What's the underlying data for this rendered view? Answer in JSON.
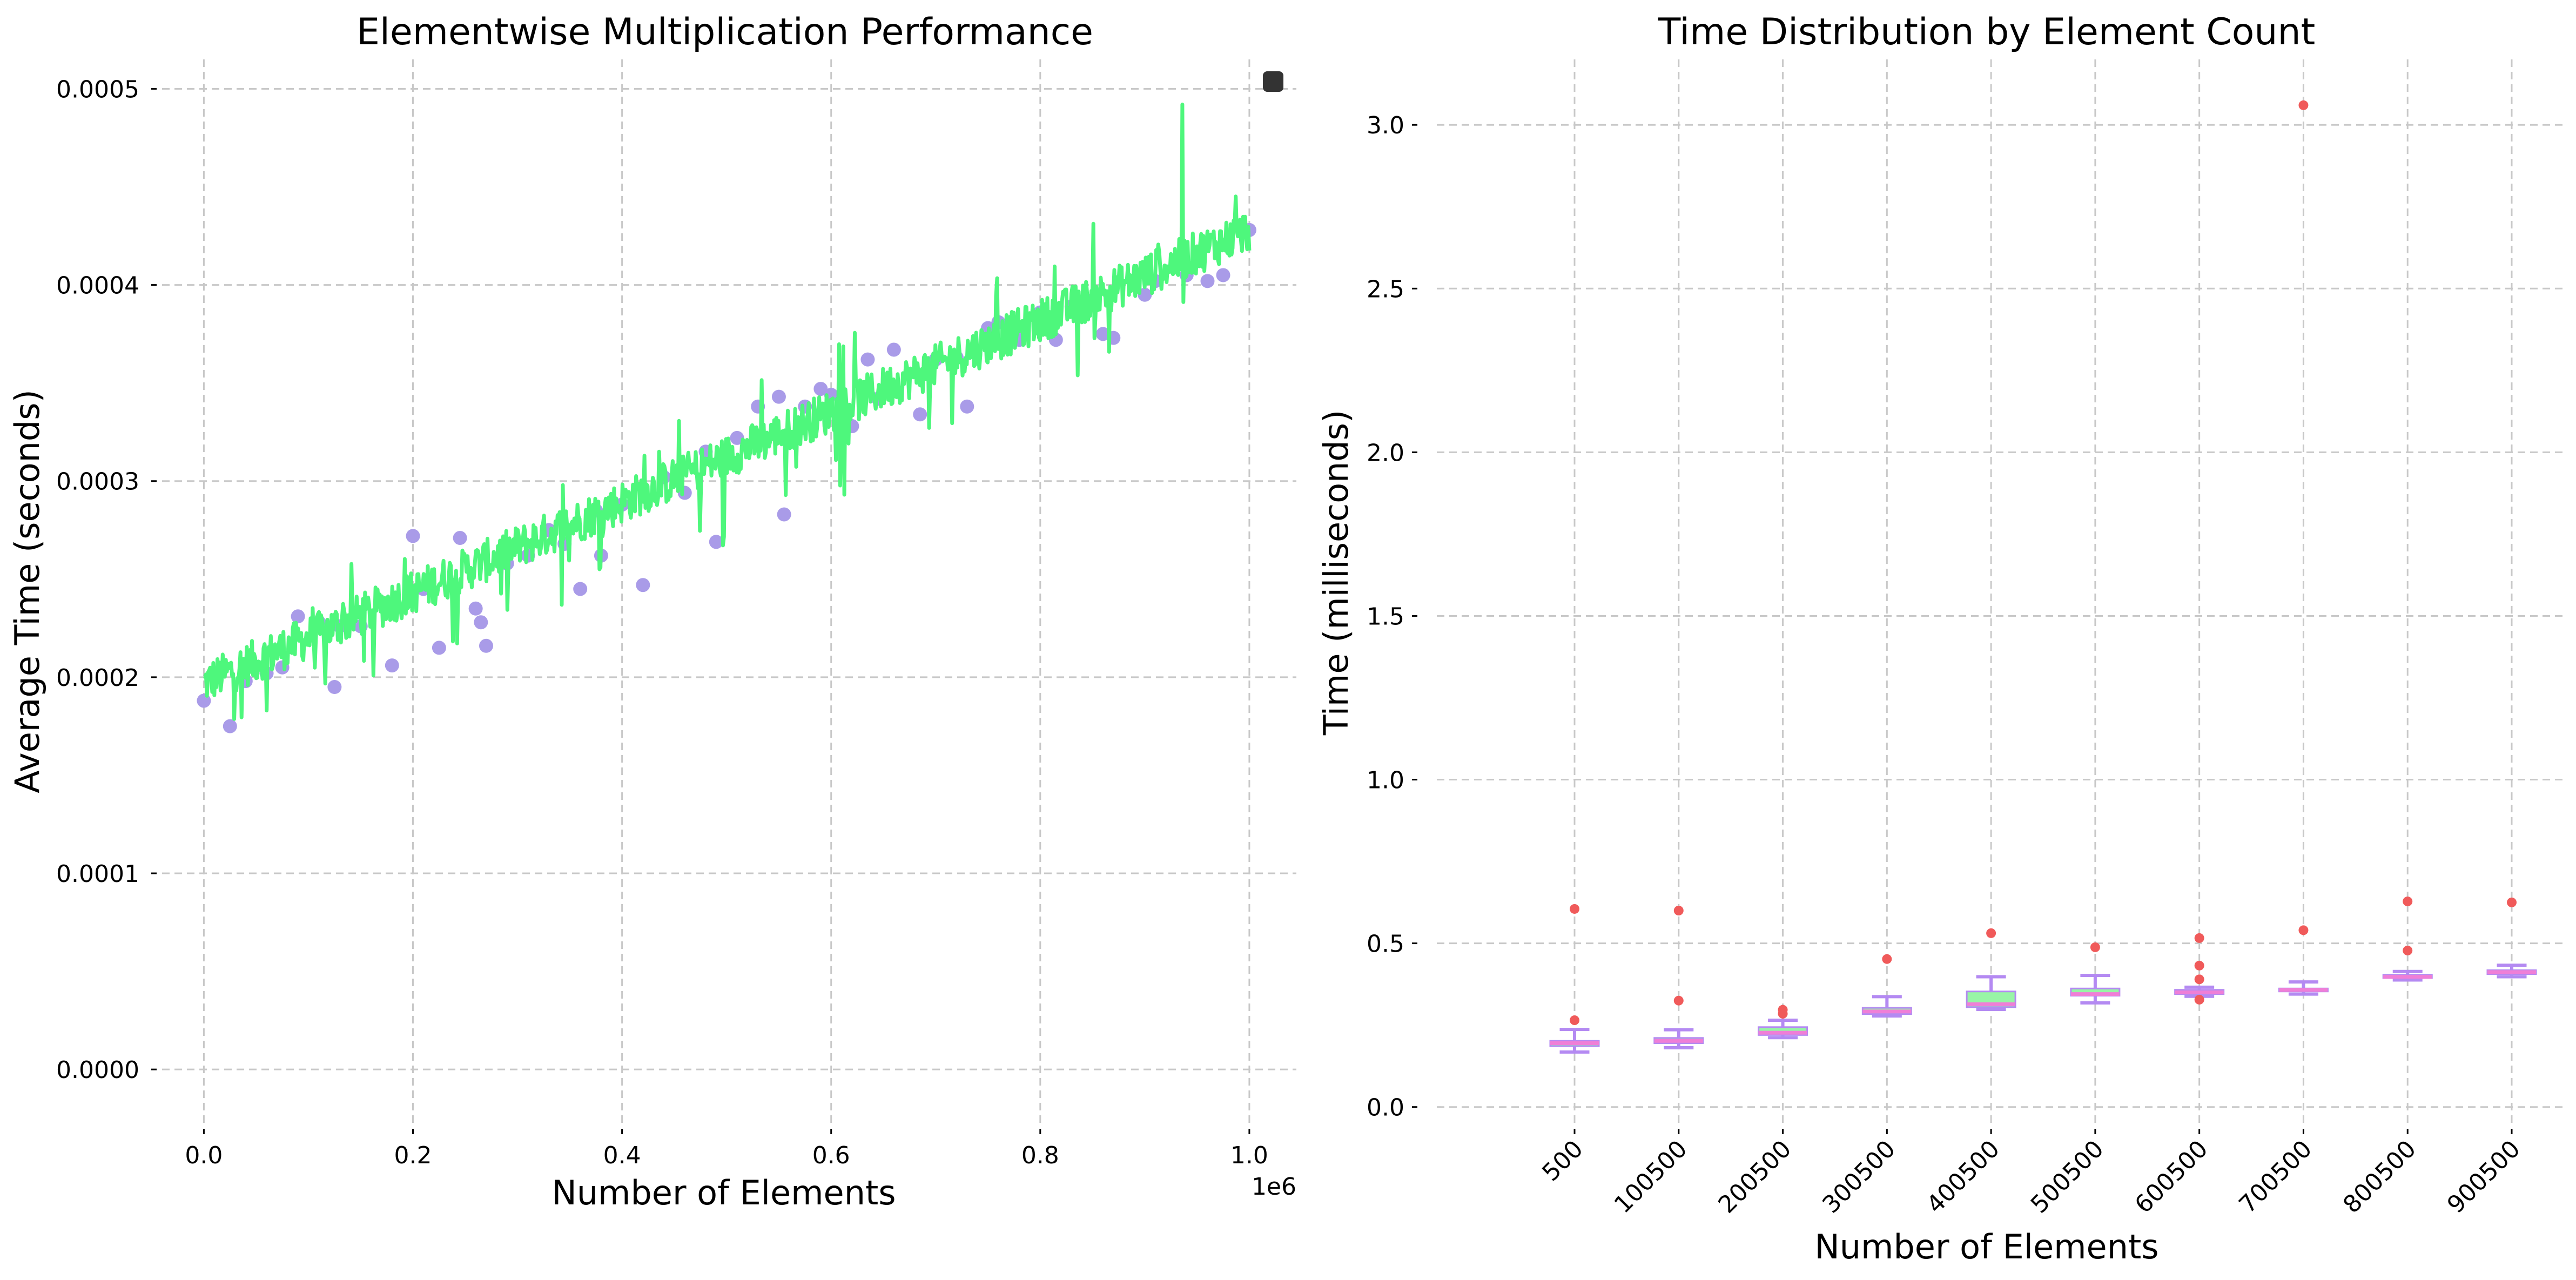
{
  "chart_data": [
    {
      "type": "scatter",
      "title": "Elementwise Multiplication Performance",
      "xlabel": "Number of Elements",
      "ylabel": "Average Time (seconds)",
      "x_offset_label": "1e6",
      "xlim": [
        -0.04,
        1.045
      ],
      "ylim": [
        -2.75e-05,
        0.000515
      ],
      "x_ticks": [
        0.0,
        0.2,
        0.4,
        0.6,
        0.8,
        1.0
      ],
      "x_tick_labels": [
        "0.0",
        "0.2",
        "0.4",
        "0.6",
        "0.8",
        "1.0"
      ],
      "y_ticks": [
        0.0,
        0.0001,
        0.0002,
        0.0003,
        0.0004,
        0.0005
      ],
      "y_tick_labels": [
        "0.0000",
        "0.0001",
        "0.0002",
        "0.0003",
        "0.0004",
        "0.0005"
      ],
      "grid": true,
      "legend": "top-right",
      "colors": {
        "points": "#a99be8",
        "line": "#4ef77c"
      },
      "trend": {
        "x_start": 0.0,
        "y_start": 0.000197,
        "x_end": 1.0,
        "y_end": 0.000428
      },
      "line_x_range": [
        0.0,
        1.0
      ],
      "line_count": 1000,
      "points": [
        [
          0.0,
          0.000188
        ],
        [
          0.025,
          0.000175
        ],
        [
          0.04,
          0.000198
        ],
        [
          0.06,
          0.000202
        ],
        [
          0.075,
          0.000205
        ],
        [
          0.09,
          0.000231
        ],
        [
          0.11,
          0.000228
        ],
        [
          0.125,
          0.000195
        ],
        [
          0.13,
          0.000226
        ],
        [
          0.15,
          0.000226
        ],
        [
          0.17,
          0.000238
        ],
        [
          0.18,
          0.000206
        ],
        [
          0.2,
          0.000272
        ],
        [
          0.21,
          0.000245
        ],
        [
          0.225,
          0.000215
        ],
        [
          0.245,
          0.000271
        ],
        [
          0.26,
          0.000235
        ],
        [
          0.265,
          0.000228
        ],
        [
          0.27,
          0.000216
        ],
        [
          0.29,
          0.000258
        ],
        [
          0.31,
          0.000262
        ],
        [
          0.33,
          0.000275
        ],
        [
          0.345,
          0.000268
        ],
        [
          0.36,
          0.000245
        ],
        [
          0.375,
          0.000285
        ],
        [
          0.38,
          0.000262
        ],
        [
          0.4,
          0.000288
        ],
        [
          0.42,
          0.000247
        ],
        [
          0.44,
          0.000302
        ],
        [
          0.46,
          0.000294
        ],
        [
          0.48,
          0.000315
        ],
        [
          0.49,
          0.000269
        ],
        [
          0.51,
          0.000322
        ],
        [
          0.53,
          0.000338
        ],
        [
          0.55,
          0.000343
        ],
        [
          0.555,
          0.000283
        ],
        [
          0.575,
          0.000338
        ],
        [
          0.59,
          0.000347
        ],
        [
          0.6,
          0.000344
        ],
        [
          0.62,
          0.000328
        ],
        [
          0.635,
          0.000362
        ],
        [
          0.645,
          0.000342
        ],
        [
          0.66,
          0.000367
        ],
        [
          0.685,
          0.000334
        ],
        [
          0.7,
          0.000362
        ],
        [
          0.72,
          0.000363
        ],
        [
          0.73,
          0.000338
        ],
        [
          0.75,
          0.000378
        ],
        [
          0.76,
          0.000381
        ],
        [
          0.78,
          0.000372
        ],
        [
          0.8,
          0.000386
        ],
        [
          0.815,
          0.000372
        ],
        [
          0.83,
          0.000389
        ],
        [
          0.845,
          0.000392
        ],
        [
          0.86,
          0.000375
        ],
        [
          0.87,
          0.000373
        ],
        [
          0.9,
          0.000395
        ],
        [
          0.91,
          0.000402
        ],
        [
          0.94,
          0.000405
        ],
        [
          0.96,
          0.000402
        ],
        [
          0.975,
          0.000405
        ],
        [
          1.0,
          0.000428
        ]
      ]
    },
    {
      "type": "box",
      "title": "Time Distribution by Element Count",
      "xlabel": "Number of Elements",
      "ylabel": "Time (milliseconds)",
      "categories": [
        "500",
        "100500",
        "200500",
        "300500",
        "400500",
        "500500",
        "600500",
        "700500",
        "800500",
        "900500"
      ],
      "ylim": [
        -0.05,
        3.2
      ],
      "y_ticks": [
        0.0,
        0.5,
        1.0,
        1.5,
        2.0,
        2.5,
        3.0
      ],
      "y_tick_labels": [
        "0.0",
        "0.5",
        "1.0",
        "1.5",
        "2.0",
        "2.5",
        "3.0"
      ],
      "grid": true,
      "colors": {
        "box": "#98f5a6",
        "whisker": "#b48af2",
        "median": "#ef7fd7",
        "outlier": "#f05a5a"
      },
      "boxes": [
        {
          "whisker_low": 0.168,
          "q1": 0.186,
          "median": 0.195,
          "q3": 0.202,
          "whisker_high": 0.237,
          "outliers": [
            0.265,
            0.605
          ]
        },
        {
          "whisker_low": 0.181,
          "q1": 0.195,
          "median": 0.202,
          "q3": 0.211,
          "whisker_high": 0.236,
          "outliers": [
            0.325,
            0.6
          ]
        },
        {
          "whisker_low": 0.212,
          "q1": 0.22,
          "median": 0.227,
          "q3": 0.244,
          "whisker_high": 0.265,
          "outliers": [
            0.285,
            0.297
          ]
        },
        {
          "whisker_low": 0.278,
          "q1": 0.284,
          "median": 0.292,
          "q3": 0.303,
          "whisker_high": 0.337,
          "outliers": [
            0.452
          ]
        },
        {
          "whisker_low": 0.298,
          "q1": 0.305,
          "median": 0.314,
          "q3": 0.353,
          "whisker_high": 0.398,
          "outliers": [
            0.531
          ]
        },
        {
          "whisker_low": 0.318,
          "q1": 0.34,
          "median": 0.345,
          "q3": 0.362,
          "whisker_high": 0.402,
          "outliers": [
            0.488
          ]
        },
        {
          "whisker_low": 0.338,
          "q1": 0.345,
          "median": 0.35,
          "q3": 0.358,
          "whisker_high": 0.366,
          "outliers": [
            0.328,
            0.39,
            0.432,
            0.516
          ]
        },
        {
          "whisker_low": 0.345,
          "q1": 0.353,
          "median": 0.358,
          "q3": 0.362,
          "whisker_high": 0.382,
          "outliers": [
            0.54,
            3.06
          ]
        },
        {
          "whisker_low": 0.388,
          "q1": 0.394,
          "median": 0.398,
          "q3": 0.404,
          "whisker_high": 0.414,
          "outliers": [
            0.478,
            0.628
          ]
        },
        {
          "whisker_low": 0.398,
          "q1": 0.406,
          "median": 0.412,
          "q3": 0.418,
          "whisker_high": 0.433,
          "outliers": [
            0.625
          ]
        }
      ]
    }
  ]
}
